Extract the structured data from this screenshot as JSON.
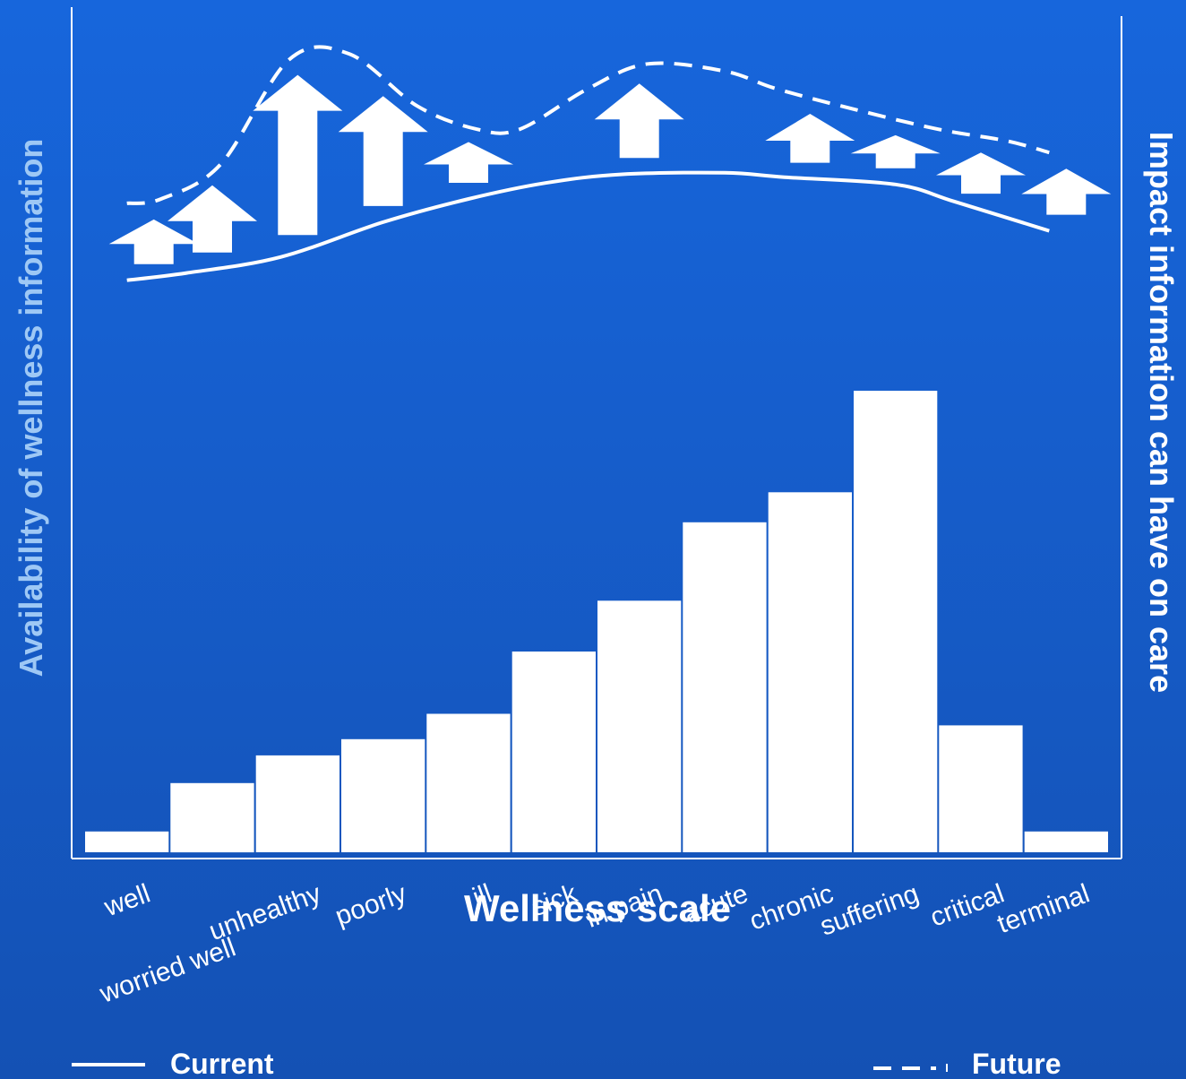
{
  "chart_data": {
    "type": "bar",
    "xlabel": "Wellness scale",
    "ylabel_left": "Availability of wellness information",
    "ylabel_right": "Impact information can have on care",
    "categories": [
      "well",
      "worried well",
      "unhealthy",
      "poorly",
      "ill",
      "sick",
      "in pain",
      "acute",
      "chronic",
      "suffering",
      "critical",
      "terminal"
    ],
    "bar_values": [
      4.5,
      15,
      21,
      24.5,
      30,
      43.5,
      54.5,
      71.5,
      78,
      100,
      27.5,
      4.5
    ],
    "ylim_bars": [
      0,
      100
    ],
    "current_line": {
      "name": "Current",
      "x": [
        0.5,
        1.2,
        2.3,
        3.5,
        4.5,
        5.4,
        6.3,
        7.5,
        8.2,
        9.5,
        10.2,
        11.3
      ],
      "y": [
        22,
        24.5,
        30,
        42,
        50,
        55.5,
        58.5,
        59,
        57.5,
        55,
        49,
        39
      ]
    },
    "future_line": {
      "name": "Future",
      "x": [
        0.5,
        0.9,
        1.6,
        2.4,
        3.1,
        3.9,
        4.6,
        5.1,
        5.9,
        6.6,
        7.5,
        8.1,
        9.0,
        10.0,
        10.8,
        11.3
      ],
      "y": [
        48.5,
        50,
        62,
        98,
        100,
        82,
        74,
        74,
        88,
        96.5,
        94,
        88,
        81,
        74,
        70,
        66
      ]
    },
    "ylim_lines": [
      0,
      100
    ],
    "legend": [
      "Current",
      "Future"
    ],
    "legend_position": "bottom",
    "arrows_between_lines": true,
    "grid": false
  },
  "colors": {
    "background_top": "#1766dc",
    "background_bottom": "#1451b4",
    "marks": "#ffffff",
    "left_axis_label": "#9ec8f5"
  }
}
